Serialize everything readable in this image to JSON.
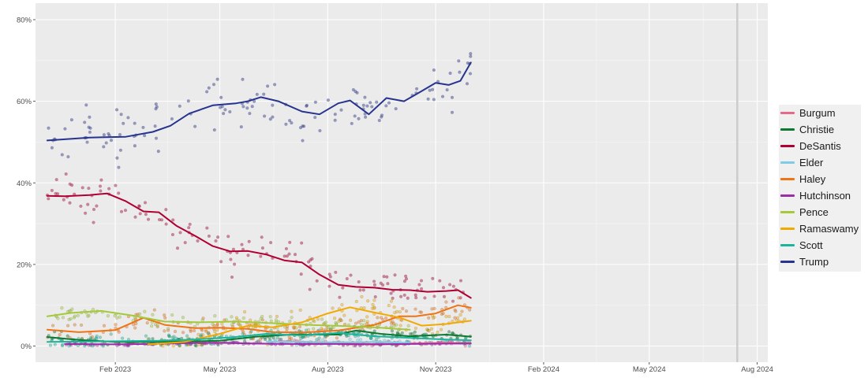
{
  "chart_data": {
    "type": "line",
    "title": "",
    "xlabel": "",
    "ylabel": "",
    "x_range": [
      "2022-11-25",
      "2024-08-10"
    ],
    "ylim": [
      0,
      80
    ],
    "x_ticks": [
      {
        "date": "2023-02-01",
        "label": "Feb 2023"
      },
      {
        "date": "2023-05-01",
        "label": "May 2023"
      },
      {
        "date": "2023-08-01",
        "label": "Aug 2023"
      },
      {
        "date": "2023-11-01",
        "label": "Nov 2023"
      },
      {
        "date": "2024-02-01",
        "label": "Feb 2024"
      },
      {
        "date": "2024-05-01",
        "label": "May 2024"
      },
      {
        "date": "2024-08-01",
        "label": "Aug 2024"
      }
    ],
    "y_ticks": [
      {
        "value": 0,
        "label": "0%"
      },
      {
        "value": 20,
        "label": "20%"
      },
      {
        "value": 40,
        "label": "40%"
      },
      {
        "value": 60,
        "label": "60%"
      },
      {
        "value": 80,
        "label": "80%"
      }
    ],
    "vertical_marker_date": "2024-07-15",
    "grid": true,
    "legend_position": "right",
    "series": [
      {
        "name": "Burgum",
        "color": "#e8688a",
        "points": [
          [
            "2023-06-20",
            1.2
          ],
          [
            "2023-07-15",
            1.0
          ],
          [
            "2023-08-10",
            0.6
          ],
          [
            "2023-09-10",
            0.5
          ],
          [
            "2023-10-10",
            0.6
          ],
          [
            "2023-11-10",
            0.8
          ],
          [
            "2023-12-01",
            0.7
          ]
        ]
      },
      {
        "name": "Christie",
        "color": "#0b7a30",
        "points": [
          [
            "2022-12-05",
            2.2
          ],
          [
            "2023-01-01",
            1.5
          ],
          [
            "2023-02-01",
            1.0
          ],
          [
            "2023-03-01",
            1.0
          ],
          [
            "2023-04-01",
            1.1
          ],
          [
            "2023-05-01",
            1.3
          ],
          [
            "2023-06-01",
            2.3
          ],
          [
            "2023-07-01",
            2.8
          ],
          [
            "2023-08-10",
            2.8
          ],
          [
            "2023-08-25",
            3.8
          ],
          [
            "2023-09-15",
            3.0
          ],
          [
            "2023-10-10",
            2.4
          ],
          [
            "2023-11-10",
            2.8
          ],
          [
            "2023-12-01",
            2.3
          ]
        ]
      },
      {
        "name": "DeSantis",
        "color": "#b00033",
        "points": [
          [
            "2022-12-05",
            36.8
          ],
          [
            "2022-12-20",
            36.7
          ],
          [
            "2023-01-10",
            37.0
          ],
          [
            "2023-01-25",
            37.4
          ],
          [
            "2023-02-10",
            35.5
          ],
          [
            "2023-02-25",
            33.0
          ],
          [
            "2023-03-10",
            32.8
          ],
          [
            "2023-03-25",
            29.5
          ],
          [
            "2023-04-10",
            27.0
          ],
          [
            "2023-04-25",
            24.5
          ],
          [
            "2023-05-10",
            23.2
          ],
          [
            "2023-05-25",
            23.3
          ],
          [
            "2023-06-10",
            22.4
          ],
          [
            "2023-06-25",
            21.0
          ],
          [
            "2023-07-10",
            20.5
          ],
          [
            "2023-07-25",
            17.5
          ],
          [
            "2023-08-10",
            15.0
          ],
          [
            "2023-08-25",
            14.5
          ],
          [
            "2023-09-10",
            14.3
          ],
          [
            "2023-09-25",
            13.8
          ],
          [
            "2023-10-10",
            13.7
          ],
          [
            "2023-10-25",
            13.3
          ],
          [
            "2023-11-10",
            13.5
          ],
          [
            "2023-11-20",
            13.7
          ],
          [
            "2023-12-01",
            11.8
          ]
        ]
      },
      {
        "name": "Elder",
        "color": "#7fcbe8",
        "points": [
          [
            "2023-06-10",
            1.1
          ],
          [
            "2023-07-10",
            1.0
          ],
          [
            "2023-08-10",
            0.9
          ],
          [
            "2023-09-10",
            1.0
          ],
          [
            "2023-10-10",
            0.8
          ]
        ]
      },
      {
        "name": "Haley",
        "color": "#f07314",
        "points": [
          [
            "2022-12-05",
            4.0
          ],
          [
            "2023-01-01",
            3.4
          ],
          [
            "2023-02-01",
            3.9
          ],
          [
            "2023-02-25",
            6.9
          ],
          [
            "2023-03-15",
            5.2
          ],
          [
            "2023-04-10",
            4.4
          ],
          [
            "2023-05-01",
            4.5
          ],
          [
            "2023-05-25",
            4.2
          ],
          [
            "2023-06-15",
            3.4
          ],
          [
            "2023-07-10",
            3.3
          ],
          [
            "2023-08-10",
            3.8
          ],
          [
            "2023-09-10",
            5.2
          ],
          [
            "2023-10-01",
            7.3
          ],
          [
            "2023-10-15",
            7.3
          ],
          [
            "2023-11-01",
            8.0
          ],
          [
            "2023-11-20",
            10.0
          ],
          [
            "2023-12-01",
            9.4
          ]
        ]
      },
      {
        "name": "Hutchinson",
        "color": "#9c2ca7",
        "points": [
          [
            "2022-12-20",
            0.5
          ],
          [
            "2023-02-01",
            0.4
          ],
          [
            "2023-03-01",
            0.5
          ],
          [
            "2023-04-01",
            0.7
          ],
          [
            "2023-05-01",
            0.8
          ],
          [
            "2023-06-01",
            0.6
          ],
          [
            "2023-07-01",
            0.5
          ],
          [
            "2023-08-10",
            0.5
          ],
          [
            "2023-09-10",
            0.4
          ],
          [
            "2023-10-10",
            0.5
          ],
          [
            "2023-11-10",
            0.6
          ],
          [
            "2023-12-01",
            0.6
          ]
        ]
      },
      {
        "name": "Pence",
        "color": "#a4c93a",
        "points": [
          [
            "2022-12-05",
            7.3
          ],
          [
            "2022-12-25",
            8.1
          ],
          [
            "2023-01-20",
            8.6
          ],
          [
            "2023-02-15",
            7.5
          ],
          [
            "2023-03-15",
            6.0
          ],
          [
            "2023-04-15",
            5.8
          ],
          [
            "2023-05-15",
            6.0
          ],
          [
            "2023-06-15",
            5.6
          ],
          [
            "2023-07-15",
            5.2
          ],
          [
            "2023-08-15",
            4.9
          ],
          [
            "2023-09-15",
            4.5
          ],
          [
            "2023-10-10",
            4.0
          ]
        ]
      },
      {
        "name": "Ramaswamy",
        "color": "#f2a900",
        "points": [
          [
            "2023-03-01",
            0.4
          ],
          [
            "2023-04-01",
            1.0
          ],
          [
            "2023-05-01",
            3.0
          ],
          [
            "2023-05-25",
            5.0
          ],
          [
            "2023-06-15",
            4.6
          ],
          [
            "2023-07-10",
            5.8
          ],
          [
            "2023-08-01",
            8.0
          ],
          [
            "2023-08-20",
            9.5
          ],
          [
            "2023-09-10",
            8.2
          ],
          [
            "2023-10-01",
            7.0
          ],
          [
            "2023-10-20",
            5.0
          ],
          [
            "2023-11-10",
            5.4
          ],
          [
            "2023-12-01",
            6.2
          ]
        ]
      },
      {
        "name": "Scott",
        "color": "#1ab59c",
        "points": [
          [
            "2022-12-05",
            1.0
          ],
          [
            "2023-01-10",
            1.1
          ],
          [
            "2023-02-10",
            1.2
          ],
          [
            "2023-03-10",
            1.3
          ],
          [
            "2023-04-10",
            1.6
          ],
          [
            "2023-05-10",
            2.1
          ],
          [
            "2023-06-10",
            3.0
          ],
          [
            "2023-07-10",
            2.6
          ],
          [
            "2023-08-10",
            3.2
          ],
          [
            "2023-09-10",
            2.4
          ],
          [
            "2023-10-10",
            2.0
          ],
          [
            "2023-11-10",
            1.6
          ],
          [
            "2023-12-01",
            1.4
          ]
        ]
      },
      {
        "name": "Trump",
        "color": "#27348f",
        "points": [
          [
            "2022-12-05",
            50.4
          ],
          [
            "2023-01-10",
            51.1
          ],
          [
            "2023-02-10",
            51.3
          ],
          [
            "2023-03-05",
            52.5
          ],
          [
            "2023-03-20",
            54.0
          ],
          [
            "2023-04-05",
            57.0
          ],
          [
            "2023-04-25",
            59.0
          ],
          [
            "2023-05-15",
            59.5
          ],
          [
            "2023-05-25",
            60.0
          ],
          [
            "2023-06-05",
            61.0
          ],
          [
            "2023-06-20",
            60.0
          ],
          [
            "2023-07-10",
            57.5
          ],
          [
            "2023-07-25",
            56.8
          ],
          [
            "2023-08-10",
            59.5
          ],
          [
            "2023-08-20",
            60.2
          ],
          [
            "2023-09-05",
            56.8
          ],
          [
            "2023-09-20",
            60.8
          ],
          [
            "2023-10-05",
            60.0
          ],
          [
            "2023-10-20",
            62.5
          ],
          [
            "2023-11-01",
            64.5
          ],
          [
            "2023-11-12",
            64.0
          ],
          [
            "2023-11-22",
            65.0
          ],
          [
            "2023-12-01",
            69.5
          ]
        ]
      }
    ]
  }
}
